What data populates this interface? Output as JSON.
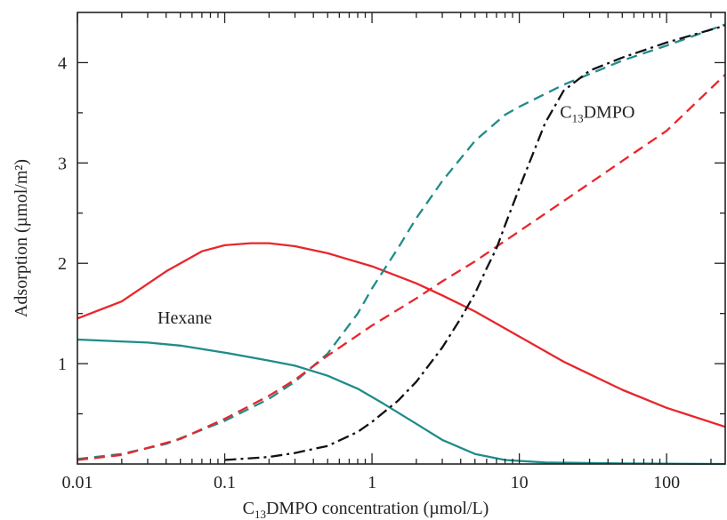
{
  "chart_data": {
    "type": "line",
    "xlabel_parts": {
      "pre": "C",
      "sub": "13",
      "post": "DMPO concentration (µmol/L)"
    },
    "ylabel": "Adsorption (µmol/m²)",
    "x_scale": "log",
    "xlim": [
      0.01,
      250
    ],
    "ylim": [
      0,
      4.5
    ],
    "x_ticks": [
      {
        "value": 0.01,
        "label": "0.01"
      },
      {
        "value": 0.1,
        "label": "0.1"
      },
      {
        "value": 1,
        "label": "1"
      },
      {
        "value": 10,
        "label": "10"
      },
      {
        "value": 100,
        "label": "100"
      }
    ],
    "y_ticks": [
      {
        "value": 1,
        "label": "1"
      },
      {
        "value": 2,
        "label": "2"
      },
      {
        "value": 3,
        "label": "3"
      },
      {
        "value": 4,
        "label": "4"
      }
    ],
    "grid": false,
    "annotations": [
      {
        "id": "hexane",
        "text": "Hexane",
        "x": 0.035,
        "y": 1.4
      },
      {
        "id": "c13dmpo",
        "pre": "C",
        "sub": "13",
        "post": "DMPO",
        "x": 40,
        "y": 3.45
      }
    ],
    "series": [
      {
        "id": "red-solid",
        "color": "#e8262b",
        "dash": "solid",
        "points": [
          [
            0.01,
            1.45
          ],
          [
            0.02,
            1.62
          ],
          [
            0.04,
            1.92
          ],
          [
            0.07,
            2.12
          ],
          [
            0.1,
            2.18
          ],
          [
            0.15,
            2.2
          ],
          [
            0.2,
            2.2
          ],
          [
            0.3,
            2.17
          ],
          [
            0.5,
            2.1
          ],
          [
            1,
            1.97
          ],
          [
            2,
            1.8
          ],
          [
            3,
            1.68
          ],
          [
            5,
            1.52
          ],
          [
            10,
            1.27
          ],
          [
            20,
            1.02
          ],
          [
            50,
            0.74
          ],
          [
            100,
            0.56
          ],
          [
            250,
            0.37
          ]
        ]
      },
      {
        "id": "teal-solid",
        "color": "#1e8c8a",
        "dash": "solid",
        "points": [
          [
            0.01,
            1.24
          ],
          [
            0.03,
            1.21
          ],
          [
            0.05,
            1.18
          ],
          [
            0.1,
            1.11
          ],
          [
            0.2,
            1.03
          ],
          [
            0.3,
            0.98
          ],
          [
            0.5,
            0.88
          ],
          [
            0.8,
            0.75
          ],
          [
            1.2,
            0.6
          ],
          [
            2,
            0.4
          ],
          [
            3,
            0.24
          ],
          [
            5,
            0.1
          ],
          [
            8,
            0.04
          ],
          [
            15,
            0.015
          ],
          [
            50,
            0.005
          ],
          [
            250,
            0.0
          ]
        ]
      },
      {
        "id": "teal-dashed",
        "color": "#1e8c8a",
        "dash": "dashed",
        "points": [
          [
            0.01,
            0.05
          ],
          [
            0.02,
            0.1
          ],
          [
            0.04,
            0.2
          ],
          [
            0.07,
            0.34
          ],
          [
            0.1,
            0.43
          ],
          [
            0.2,
            0.65
          ],
          [
            0.3,
            0.82
          ],
          [
            0.5,
            1.1
          ],
          [
            0.8,
            1.5
          ],
          [
            1,
            1.75
          ],
          [
            1.5,
            2.15
          ],
          [
            2,
            2.45
          ],
          [
            3,
            2.82
          ],
          [
            5,
            3.22
          ],
          [
            8,
            3.48
          ],
          [
            10,
            3.56
          ],
          [
            20,
            3.78
          ],
          [
            50,
            4.02
          ],
          [
            100,
            4.17
          ],
          [
            250,
            4.38
          ]
        ]
      },
      {
        "id": "red-dashed",
        "color": "#e8262b",
        "dash": "dashed",
        "points": [
          [
            0.01,
            0.04
          ],
          [
            0.02,
            0.09
          ],
          [
            0.05,
            0.25
          ],
          [
            0.1,
            0.45
          ],
          [
            0.2,
            0.68
          ],
          [
            0.3,
            0.84
          ],
          [
            0.5,
            1.08
          ],
          [
            1,
            1.38
          ],
          [
            2,
            1.65
          ],
          [
            3,
            1.82
          ],
          [
            5,
            2.02
          ],
          [
            10,
            2.32
          ],
          [
            20,
            2.62
          ],
          [
            50,
            3.02
          ],
          [
            100,
            3.32
          ],
          [
            250,
            3.88
          ]
        ]
      },
      {
        "id": "black-dashdot",
        "color": "#111111",
        "dash": "dashdot",
        "points": [
          [
            0.1,
            0.04
          ],
          [
            0.2,
            0.07
          ],
          [
            0.3,
            0.11
          ],
          [
            0.5,
            0.18
          ],
          [
            0.8,
            0.32
          ],
          [
            1,
            0.42
          ],
          [
            1.5,
            0.63
          ],
          [
            2,
            0.82
          ],
          [
            3,
            1.16
          ],
          [
            4,
            1.45
          ],
          [
            5,
            1.7
          ],
          [
            6,
            1.95
          ],
          [
            7,
            2.15
          ],
          [
            8,
            2.38
          ],
          [
            10,
            2.75
          ],
          [
            15,
            3.4
          ],
          [
            20,
            3.72
          ],
          [
            30,
            3.92
          ],
          [
            50,
            4.05
          ],
          [
            100,
            4.2
          ],
          [
            250,
            4.37
          ]
        ]
      }
    ]
  }
}
